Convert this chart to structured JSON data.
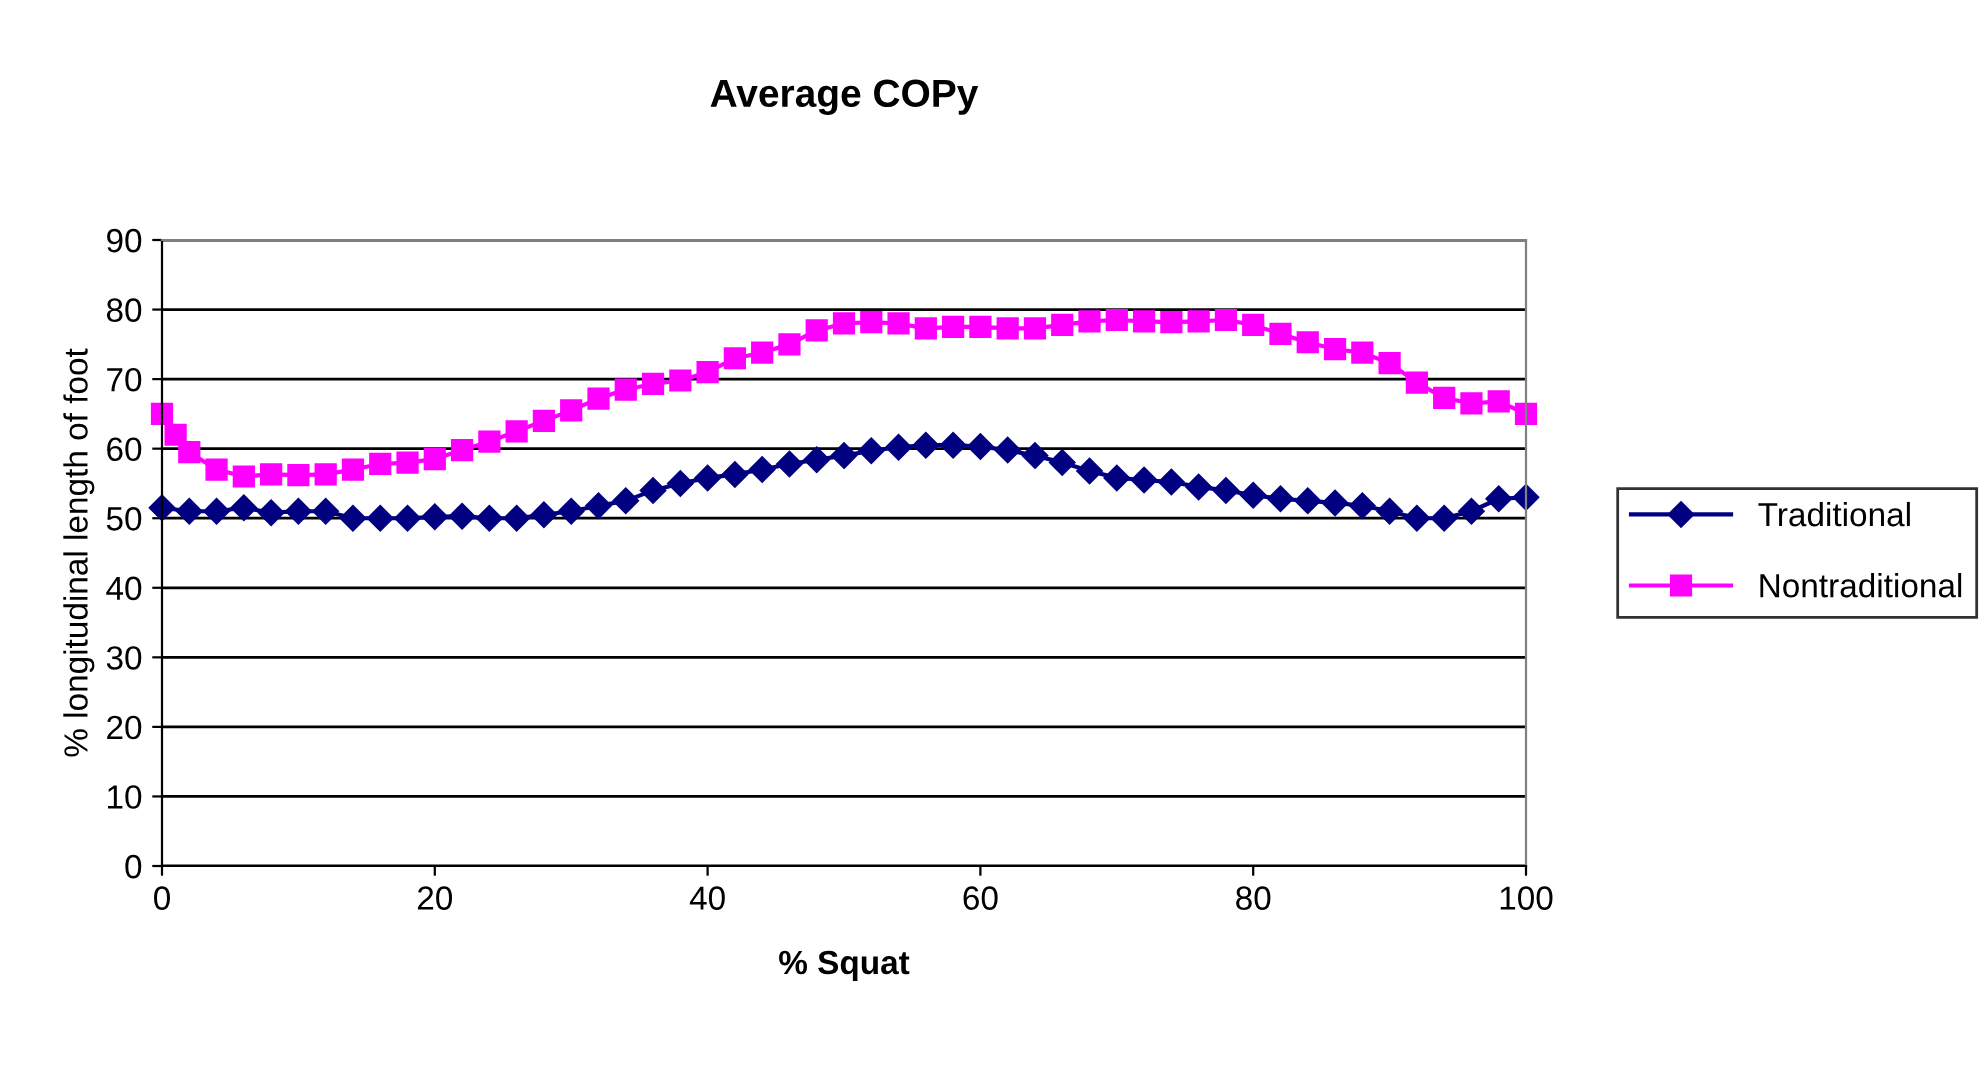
{
  "chart_data": {
    "type": "line",
    "title": "Average COPy",
    "xlabel": "% Squat",
    "ylabel": "% longitudinal length of foot",
    "xlim": [
      0,
      100
    ],
    "xticks": [
      0,
      20,
      40,
      60,
      80,
      100
    ],
    "ylim": [
      0,
      90
    ],
    "yticks": [
      0,
      10,
      20,
      30,
      40,
      50,
      60,
      70,
      80,
      90
    ],
    "grid": "y",
    "legend": "right",
    "series": [
      {
        "name": "Traditional",
        "color": "#000080",
        "marker": "diamond",
        "x": [
          0,
          2,
          4,
          6,
          8,
          10,
          12,
          14,
          16,
          18,
          20,
          22,
          24,
          26,
          28,
          30,
          32,
          34,
          36,
          38,
          40,
          42,
          44,
          46,
          48,
          50,
          52,
          54,
          56,
          58,
          60,
          62,
          64,
          66,
          68,
          70,
          72,
          74,
          76,
          78,
          80,
          82,
          84,
          86,
          88,
          90,
          92,
          94,
          96,
          98,
          100
        ],
        "values": [
          51.5,
          51,
          51,
          51.5,
          50.8,
          51,
          51,
          50,
          50,
          50,
          50.2,
          50.3,
          50,
          50,
          50.5,
          51,
          51.8,
          52.5,
          54,
          55,
          55.8,
          56.3,
          57,
          57.8,
          58.4,
          59,
          59.7,
          60.2,
          60.5,
          60.5,
          60.3,
          59.8,
          59,
          58,
          56.8,
          55.8,
          55.5,
          55.2,
          54.5,
          54,
          53.3,
          52.8,
          52.5,
          52.2,
          51.8,
          51,
          50,
          50,
          51,
          52.8,
          53
        ]
      },
      {
        "name": "Nontraditional",
        "color": "#ff00ff",
        "marker": "square",
        "x": [
          0,
          1,
          2,
          4,
          6,
          8,
          10,
          12,
          14,
          16,
          18,
          20,
          22,
          24,
          26,
          28,
          30,
          32,
          34,
          36,
          38,
          40,
          42,
          44,
          46,
          48,
          50,
          52,
          54,
          56,
          58,
          60,
          62,
          64,
          66,
          68,
          70,
          72,
          74,
          76,
          78,
          80,
          82,
          84,
          86,
          88,
          90,
          92,
          94,
          96,
          98,
          100
        ],
        "values": [
          65,
          62,
          59.5,
          57,
          56,
          56.3,
          56.2,
          56.3,
          57,
          57.8,
          58,
          58.5,
          59.8,
          61,
          62.5,
          64,
          65.5,
          67.2,
          68.5,
          69.3,
          69.8,
          71,
          73,
          73.8,
          75,
          77,
          78,
          78.2,
          78,
          77.3,
          77.5,
          77.5,
          77.3,
          77.3,
          77.8,
          78.3,
          78.5,
          78.3,
          78.2,
          78.3,
          78.5,
          77.8,
          76.5,
          75.3,
          74.3,
          73.8,
          72.3,
          69.5,
          67.3,
          66.5,
          66.8,
          65
        ]
      }
    ]
  }
}
